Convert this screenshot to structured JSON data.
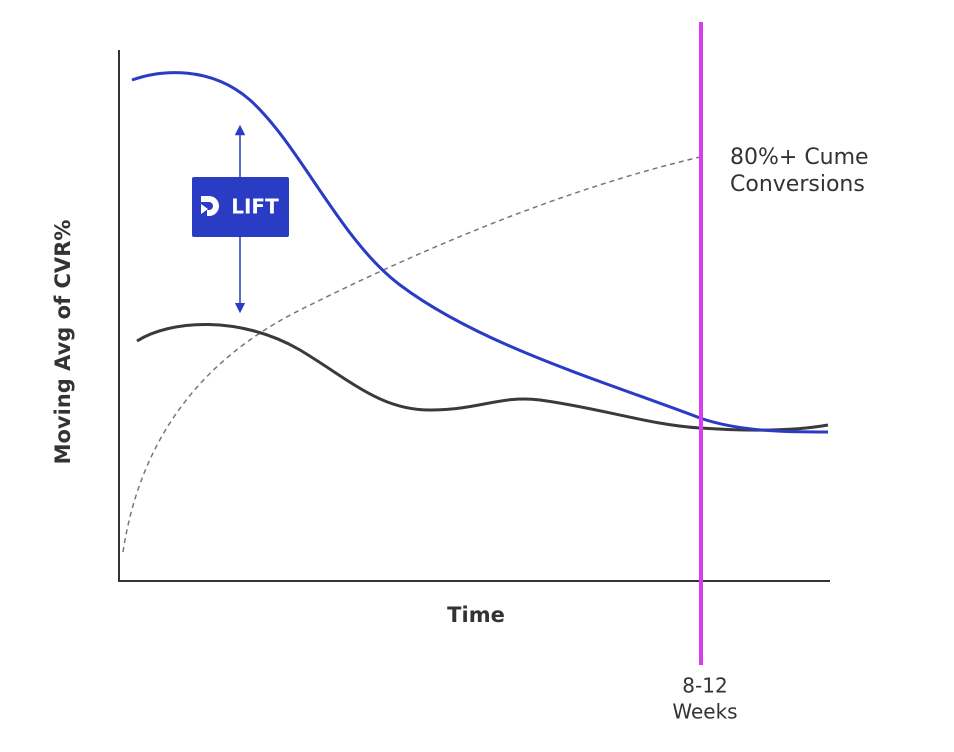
{
  "y_axis_label": "Moving Avg of CVR%",
  "x_axis_label": "Time",
  "annotation": {
    "lines": [
      "80%+ Cume",
      "Conversions"
    ]
  },
  "marker_label": {
    "lines": [
      "8-12",
      "Weeks"
    ]
  },
  "badge": {
    "label": "LIFT"
  }
}
